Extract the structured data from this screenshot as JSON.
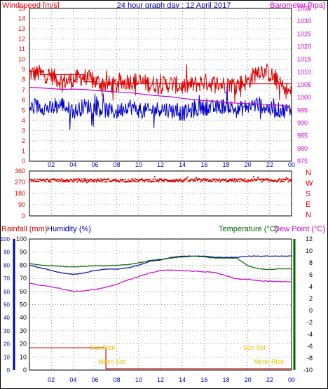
{
  "header": {
    "windspeed_label": "Windspeed [m/s]",
    "title": "24 hour graph day : 12 April 2017",
    "barometer_label": "Barometer [hpa]"
  },
  "colors": {
    "wind": "#dd0000",
    "gust_avg": "#0000cc",
    "barometer": "#cc00cc",
    "direction": "#dd0000",
    "temperature": "#006600",
    "humidity": "#0000aa",
    "dewpoint": "#cc00cc",
    "rainfall": "#cc0000",
    "sun_moon": "#e8c000",
    "grid": "#000000"
  },
  "x_ticks": [
    "02",
    "04",
    "06",
    "08",
    "10",
    "12",
    "14",
    "16",
    "18",
    "20",
    "22",
    "00"
  ],
  "direction_labels": [
    "N",
    "W",
    "S",
    "E",
    "N"
  ],
  "lower_header": {
    "rainfall_label": "Rainfall (mm)",
    "humidity_label": "Humidity (%)",
    "temperature_label": "Temperature (°C)",
    "dewpoint_label": "Dew Point (°C)"
  },
  "events": {
    "sun_rise": "Sun Rise",
    "sun_set": "Sun Set",
    "moon_set": "Moon Set",
    "moon_rise": "Moon Rise"
  },
  "chart_data": [
    {
      "type": "line",
      "panel": "wind_barometer",
      "x_hours": [
        0,
        24
      ],
      "xlim_hours": [
        0,
        24
      ],
      "y_left": {
        "label": "Windspeed [m/s]",
        "ylim": [
          0,
          15
        ],
        "ticks": [
          0,
          1,
          2,
          3,
          4,
          5,
          6,
          7,
          8,
          9,
          10,
          11,
          12,
          13,
          14,
          15
        ]
      },
      "y_right": {
        "label": "Barometer [hpa]",
        "ylim": [
          975,
          1035
        ],
        "ticks": [
          975,
          980,
          985,
          990,
          995,
          1000,
          1005,
          1010,
          1015,
          1020,
          1025,
          1030,
          1035
        ]
      },
      "series": [
        {
          "role": "wind_peak",
          "axis": "left",
          "hours": [
            0,
            1,
            2,
            3,
            4,
            5,
            6,
            7,
            8,
            9,
            10,
            11,
            12,
            13,
            14,
            15,
            16,
            17,
            18,
            19,
            20,
            21,
            22,
            23,
            24
          ],
          "values": [
            8.6,
            8.6,
            8.4,
            7.8,
            8.0,
            8.3,
            7.8,
            7.6,
            7.4,
            7.9,
            7.8,
            7.6,
            7.5,
            7.6,
            7.3,
            7.5,
            7.8,
            7.6,
            7.5,
            7.6,
            7.8,
            9.0,
            8.6,
            7.4,
            6.6
          ]
        },
        {
          "role": "wind_avg",
          "axis": "left",
          "hours": [
            0,
            1,
            2,
            3,
            4,
            5,
            6,
            7,
            8,
            9,
            10,
            11,
            12,
            13,
            14,
            15,
            16,
            17,
            18,
            19,
            20,
            21,
            22,
            23,
            24
          ],
          "values": [
            5.2,
            5.4,
            5.1,
            5.6,
            4.8,
            5.4,
            5.3,
            5.0,
            4.8,
            5.5,
            5.0,
            4.9,
            5.2,
            5.0,
            4.7,
            5.0,
            5.3,
            5.2,
            5.5,
            5.0,
            5.4,
            5.6,
            5.1,
            5.0,
            5.0
          ]
        },
        {
          "role": "barometer",
          "axis": "right",
          "hours": [
            0,
            1,
            2,
            3,
            4,
            5,
            6,
            7,
            8,
            9,
            10,
            11,
            12,
            13,
            14,
            15,
            16,
            17,
            18,
            19,
            20,
            21,
            22,
            23,
            24
          ],
          "values": [
            1004,
            1003.8,
            1003.5,
            1003.2,
            1003.3,
            1003.2,
            1002.8,
            1002.5,
            1002.2,
            1002.0,
            1001.5,
            1001.0,
            1000.6,
            1000.3,
            999.7,
            999.2,
            998.8,
            998.5,
            998.0,
            997.8,
            997.6,
            997.4,
            997.2,
            997.0,
            995.6
          ]
        }
      ],
      "wind_avg_step": {
        "hours": [
          0,
          1,
          5,
          6,
          24
        ],
        "values": [
          8.8,
          8.5,
          7.8,
          7.6,
          7.6
        ]
      }
    },
    {
      "type": "scatter",
      "panel": "wind_direction",
      "xlim_hours": [
        0,
        24
      ],
      "ylim": [
        0,
        360
      ],
      "y_ticks": [
        0,
        90,
        180,
        270,
        360
      ],
      "y_tick_labels": [
        "0",
        "90",
        "180",
        "270",
        "360"
      ],
      "values_mean_deg": 285,
      "values_range_deg": [
        270,
        315
      ]
    },
    {
      "type": "line",
      "panel": "temp_hum_rain",
      "xlim_hours": [
        0,
        24
      ],
      "y_rain": {
        "label": "Rainfall (mm)",
        "ylim": [
          0,
          100
        ],
        "ticks": [
          0,
          10,
          20,
          30,
          40,
          50,
          60,
          70,
          80,
          90,
          100
        ]
      },
      "y_hum": {
        "label": "Humidity (%)",
        "ylim": [
          0,
          100
        ],
        "ticks": [
          0,
          10,
          20,
          30,
          40,
          50,
          60,
          70,
          80,
          90,
          100
        ]
      },
      "y_temp": {
        "label": "Temperature (°C)",
        "ylim": [
          -10,
          12
        ],
        "ticks": [
          -10,
          -8,
          -6,
          -4,
          -2,
          0,
          2,
          4,
          6,
          8,
          10,
          12
        ]
      },
      "series": [
        {
          "role": "humidity",
          "axis": "hum",
          "hours": [
            0,
            1,
            2,
            3,
            4,
            5,
            6,
            7,
            8,
            9,
            10,
            11,
            12,
            13,
            14,
            15,
            16,
            17,
            18,
            19,
            20,
            21,
            22,
            23,
            24
          ],
          "values": [
            80,
            78,
            76,
            74,
            73,
            74,
            76,
            77,
            77,
            78,
            80,
            83,
            84,
            86,
            87,
            87,
            87,
            86,
            86,
            86,
            87,
            87,
            87,
            87,
            87
          ]
        },
        {
          "role": "temperature",
          "axis": "temp",
          "hours": [
            0,
            1,
            2,
            3,
            4,
            5,
            6,
            7,
            8,
            9,
            10,
            11,
            12,
            13,
            14,
            15,
            16,
            17,
            18,
            19,
            20,
            21,
            22,
            23,
            24
          ],
          "values": [
            7.9,
            7.6,
            7.5,
            7.4,
            7.3,
            7.4,
            7.5,
            7.5,
            7.6,
            7.7,
            8.0,
            8.4,
            8.6,
            8.8,
            9.0,
            9.1,
            9.0,
            8.8,
            8.8,
            8.8,
            7.5,
            7.0,
            6.9,
            7.0,
            7.0
          ]
        },
        {
          "role": "dewpoint",
          "axis": "temp",
          "hours": [
            0,
            1,
            2,
            3,
            4,
            5,
            6,
            7,
            8,
            9,
            10,
            11,
            12,
            13,
            14,
            15,
            16,
            17,
            18,
            19,
            20,
            21,
            22,
            23,
            24
          ],
          "values": [
            4.6,
            4.2,
            4.0,
            3.6,
            3.2,
            3.3,
            3.5,
            3.9,
            4.4,
            5.1,
            5.7,
            6.3,
            6.7,
            6.8,
            6.7,
            6.6,
            6.5,
            6.4,
            5.8,
            5.3,
            5.2,
            5.0,
            4.9,
            4.9,
            4.8
          ]
        },
        {
          "role": "rainfall",
          "axis": "rain",
          "hours": [
            0,
            6.9,
            7.0,
            24
          ],
          "values": [
            17,
            17,
            1,
            1
          ]
        }
      ],
      "annotations": [
        {
          "text": "Sun Rise",
          "hour": 6.2
        },
        {
          "text": "Moon Set",
          "hour": 7.3
        },
        {
          "text": "Sun Set",
          "hour": 20.3
        },
        {
          "text": "Moon Rise",
          "hour": 21.0
        }
      ]
    }
  ]
}
